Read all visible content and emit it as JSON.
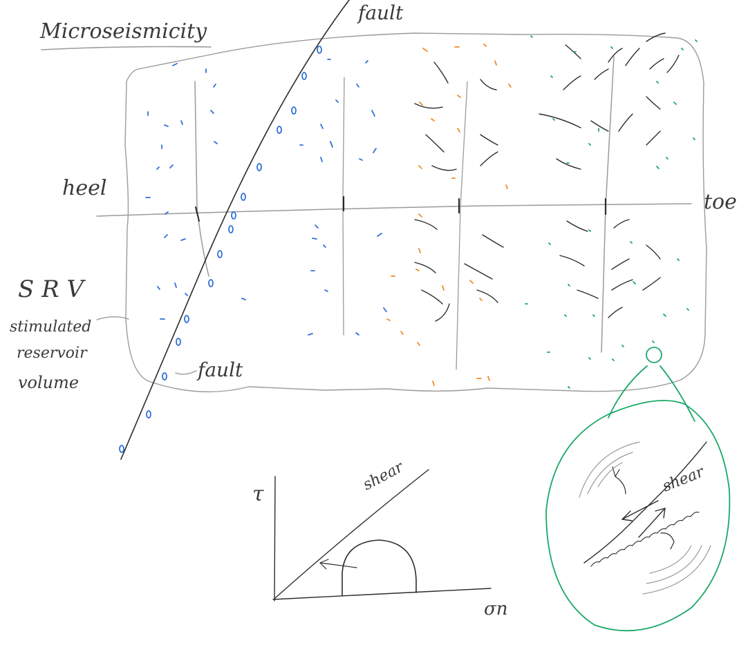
{
  "title": "Microseismicity",
  "labels": {
    "fault_top": "fault",
    "fault_bottom": "fault",
    "heel": "heel",
    "toe": "toe",
    "srv_abbrev": "S R V",
    "srv_line1": "stimulated",
    "srv_line2": "reservoir",
    "srv_line3": "volume"
  },
  "mohr": {
    "tau_label": "τ",
    "sigma_label": "σn",
    "envelope_label": "shear"
  },
  "detail": {
    "marker_label": "①",
    "shear_label": "shear"
  },
  "colors": {
    "stage1": "#2f6fd6",
    "stage2": "#2f6fd6",
    "stage3": "#f08a24",
    "stage4": "#19a866",
    "ink": "#2b2b2b",
    "pencil": "#9a9a9a"
  }
}
